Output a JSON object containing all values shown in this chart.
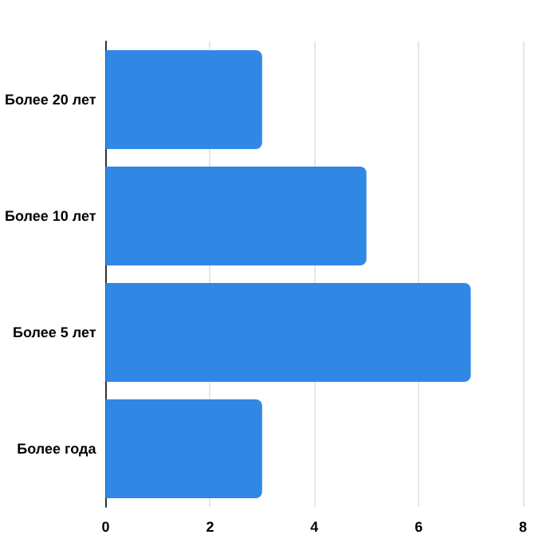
{
  "chart_data": {
    "type": "bar",
    "orientation": "horizontal",
    "categories": [
      "Более 20 лет",
      "Более 10 лет",
      "Более 5 лет",
      "Более года"
    ],
    "values": [
      3,
      5,
      7,
      3
    ],
    "color": "#3088e4",
    "xlim": [
      0,
      8
    ],
    "xticks": [
      0,
      2,
      4,
      6,
      8
    ],
    "grid": "x"
  }
}
